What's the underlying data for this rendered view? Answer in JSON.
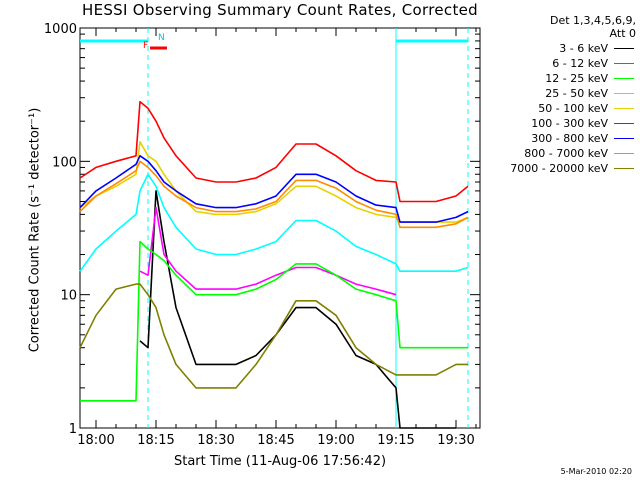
{
  "title": "HESSI Observing Summary Count Rates, Corrected",
  "legend": {
    "header": [
      "Det 1,3,4,5,6,9,",
      "Att 0"
    ],
    "entries": [
      {
        "label": "3 - 6 keV",
        "color": "#000000"
      },
      {
        "label": "6 - 12 keV",
        "color": "#ff00ff"
      },
      {
        "label": "12 - 25 keV",
        "color": "#00ff00"
      },
      {
        "label": "25 - 50 keV",
        "color": "#00ffff"
      },
      {
        "label": "50 - 100 keV",
        "color": "#e6d200"
      },
      {
        "label": "100 - 300 keV",
        "color": "#ff0000"
      },
      {
        "label": "300 - 800 keV",
        "color": "#0000ff"
      },
      {
        "label": "800 - 7000 keV",
        "color": "#ff8c00"
      },
      {
        "label": "7000 - 20000 keV",
        "color": "#808000"
      }
    ]
  },
  "flags": {
    "F": "F",
    "N": "N"
  },
  "footer": "5-Mar-2010 02:20",
  "chart_data": {
    "type": "line",
    "xlabel": "Start Time (11-Aug-06 17:56:42)",
    "ylabel": "Corrected Count Rate (s⁻¹ detector⁻¹)",
    "y_scale": "log",
    "ylim": [
      1,
      1000
    ],
    "xlim": [
      "17:56",
      "19:36"
    ],
    "x_ticks": [
      "18:00",
      "18:15",
      "18:30",
      "18:45",
      "19:00",
      "19:15",
      "19:30"
    ],
    "y_ticks": [
      "1",
      "10",
      "100",
      "1000"
    ],
    "bars": {
      "night_1": {
        "start": "17:56",
        "end": "18:13"
      },
      "night_2": {
        "start": "19:15",
        "end": "19:33"
      },
      "flare_F": {
        "start": "18:13",
        "end": "18:17"
      }
    },
    "x": [
      "17:56",
      "18:00",
      "18:05",
      "18:10",
      "18:11",
      "18:13",
      "18:15",
      "18:17",
      "18:20",
      "18:25",
      "18:30",
      "18:35",
      "18:40",
      "18:45",
      "18:50",
      "18:55",
      "19:00",
      "19:05",
      "19:10",
      "19:15",
      "19:16",
      "19:20",
      "19:25",
      "19:30",
      "19:33"
    ],
    "series": [
      {
        "name": "3 - 6 keV",
        "color": "#000000",
        "values": [
          null,
          null,
          null,
          null,
          4.5,
          4,
          60,
          25,
          8,
          3,
          3,
          3,
          3.5,
          5,
          8,
          8,
          6,
          3.5,
          3,
          2,
          1,
          1,
          1,
          1,
          null
        ]
      },
      {
        "name": "6 - 12 keV",
        "color": "#ff00ff",
        "values": [
          null,
          null,
          null,
          null,
          15,
          14,
          45,
          20,
          15,
          11,
          11,
          11,
          12,
          14,
          16,
          16,
          14,
          12,
          11,
          10,
          null,
          null,
          null,
          null,
          null
        ]
      },
      {
        "name": "12 - 25 keV",
        "color": "#00ff00",
        "values": [
          1.6,
          1.6,
          1.6,
          1.6,
          25,
          22,
          20,
          18,
          14,
          10,
          10,
          10,
          11,
          13,
          17,
          17,
          14,
          11,
          10,
          9,
          4,
          4,
          4,
          4,
          4
        ]
      },
      {
        "name": "25 - 50 keV",
        "color": "#00ffff",
        "values": [
          15,
          22,
          30,
          40,
          60,
          80,
          65,
          45,
          32,
          22,
          20,
          20,
          22,
          25,
          36,
          36,
          30,
          23,
          20,
          17,
          15,
          15,
          15,
          15,
          16
        ]
      },
      {
        "name": "50 - 100 keV",
        "color": "#e6d200",
        "values": [
          45,
          55,
          65,
          80,
          140,
          110,
          100,
          80,
          60,
          42,
          40,
          40,
          42,
          48,
          65,
          65,
          55,
          45,
          40,
          38,
          35,
          35,
          35,
          35,
          38
        ]
      },
      {
        "name": "100 - 300 keV",
        "color": "#ff0000",
        "values": [
          75,
          90,
          100,
          110,
          280,
          250,
          200,
          150,
          110,
          75,
          70,
          70,
          75,
          90,
          135,
          135,
          110,
          85,
          72,
          70,
          50,
          50,
          50,
          55,
          65
        ]
      },
      {
        "name": "300 - 800 keV",
        "color": "#0000ff",
        "values": [
          45,
          60,
          75,
          95,
          110,
          100,
          85,
          70,
          60,
          48,
          45,
          45,
          48,
          55,
          80,
          80,
          70,
          55,
          47,
          45,
          35,
          35,
          35,
          38,
          42
        ]
      },
      {
        "name": "800 - 7000 keV",
        "color": "#ff8c00",
        "values": [
          42,
          55,
          68,
          85,
          100,
          90,
          78,
          65,
          55,
          45,
          42,
          42,
          44,
          50,
          72,
          72,
          63,
          50,
          43,
          40,
          32,
          32,
          32,
          34,
          38
        ]
      },
      {
        "name": "7000 - 20000 keV",
        "color": "#808000",
        "values": [
          4,
          7,
          11,
          12,
          12,
          10,
          8,
          5,
          3,
          2,
          2,
          2,
          3,
          5,
          9,
          9,
          7,
          4,
          3,
          2.5,
          2.5,
          2.5,
          2.5,
          3,
          3
        ]
      }
    ]
  }
}
